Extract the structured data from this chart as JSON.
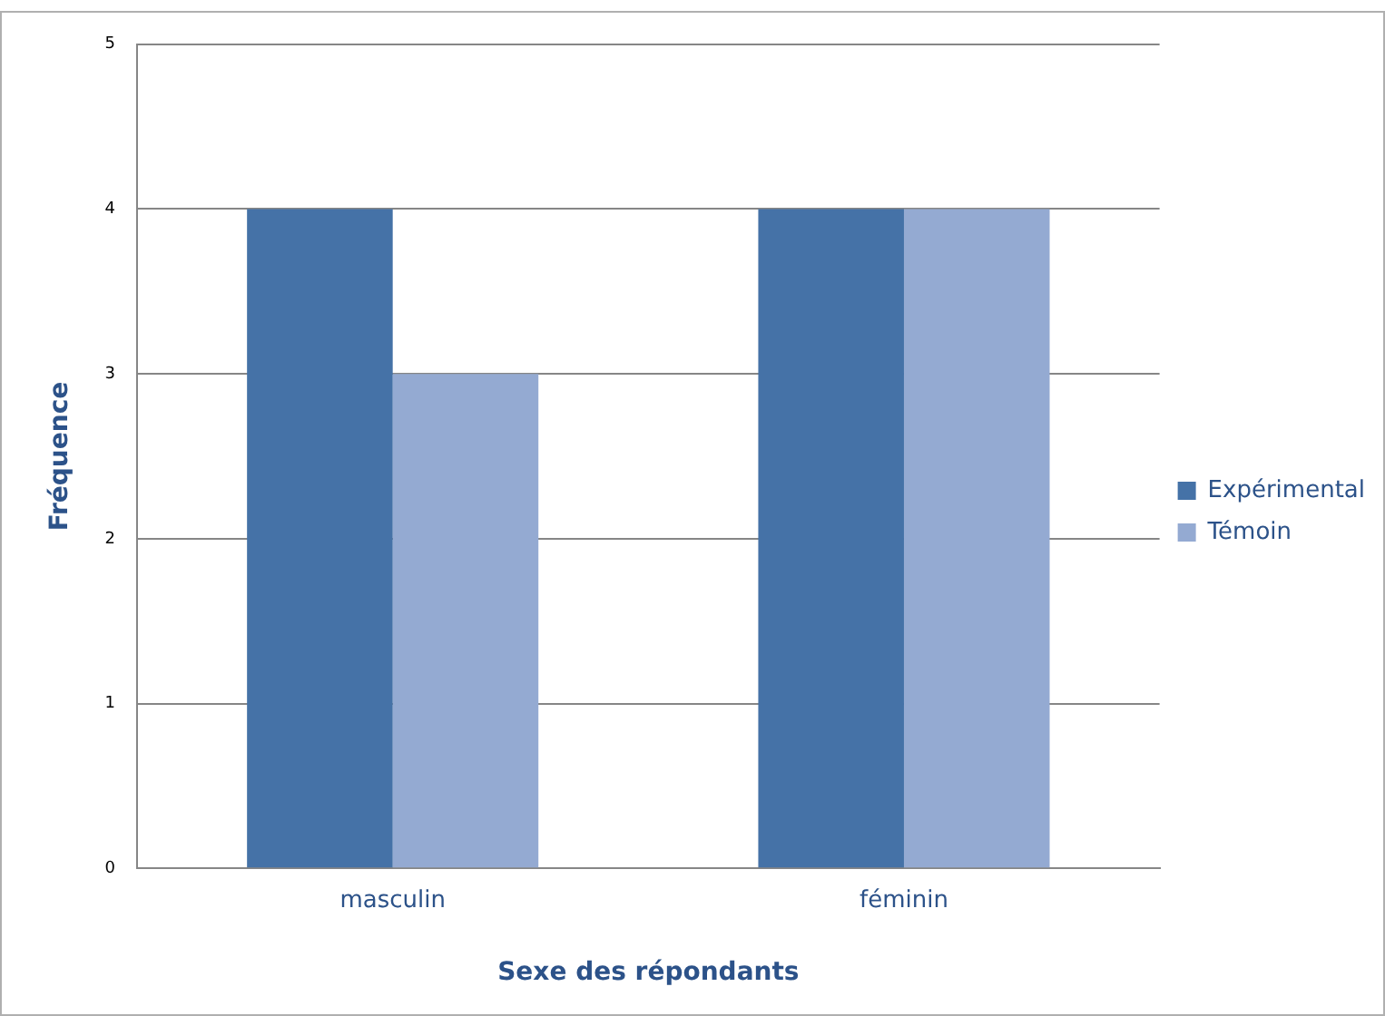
{
  "chart_data": {
    "type": "bar",
    "xlabel": "Sexe des répondants",
    "ylabel": "Fréquence",
    "categories": [
      "masculin",
      "féminin"
    ],
    "series": [
      {
        "name": "Expérimental",
        "color": "#4572a7",
        "values": [
          4,
          4
        ]
      },
      {
        "name": "Témoin",
        "color": "#94aad2",
        "values": [
          3,
          4
        ]
      }
    ],
    "ylim": [
      0,
      5
    ],
    "yticks": [
      0,
      1,
      2,
      3,
      4,
      5
    ],
    "grid": "y",
    "legend": "right"
  }
}
